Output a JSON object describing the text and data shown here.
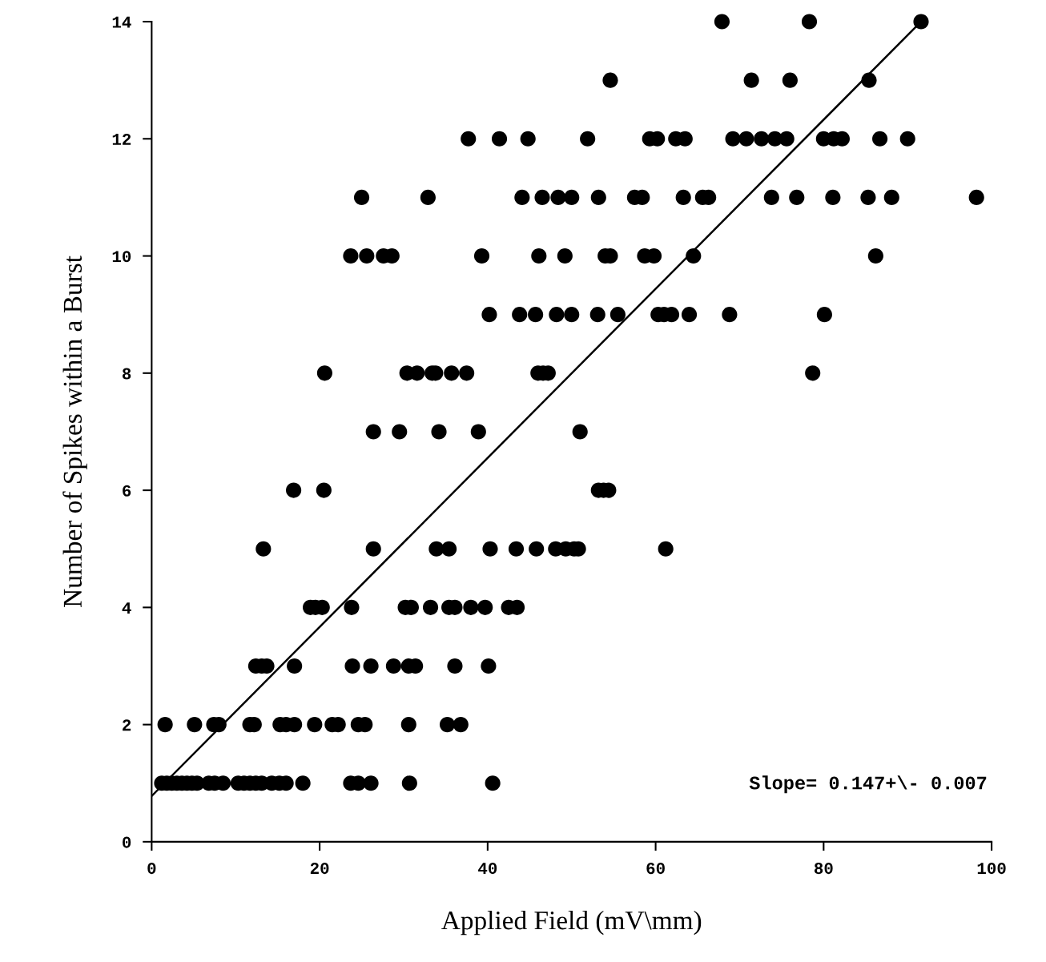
{
  "chart_data": {
    "type": "scatter",
    "xlabel": "Applied Field (mV\\mm)",
    "ylabel": "Number of Spikes within a Burst",
    "xlim": [
      0,
      100
    ],
    "xticks": [
      0,
      20,
      40,
      60,
      80,
      100
    ],
    "ylim": [
      0,
      14
    ],
    "yticks": [
      0,
      2,
      4,
      6,
      8,
      10,
      12,
      14
    ],
    "grid": false,
    "legend": false,
    "annotations": [
      "Slope= 0.147+\\- 0.007"
    ],
    "series": [
      {
        "color": "#000000",
        "marker": "circle",
        "x": [
          67.9,
          78.3,
          91.6,
          54.6,
          71.4,
          76.0,
          85.4,
          37.7,
          41.4,
          44.8,
          51.9,
          59.3,
          60.2,
          62.4,
          63.5,
          69.2,
          70.8,
          72.6,
          74.2,
          75.6,
          80.0,
          81.2,
          82.2,
          86.7,
          90.0,
          25.0,
          32.9,
          44.1,
          46.5,
          48.4,
          50.0,
          53.2,
          57.5,
          58.4,
          63.3,
          65.6,
          66.3,
          73.8,
          76.8,
          81.1,
          85.3,
          88.1,
          98.2,
          23.7,
          25.6,
          27.6,
          28.6,
          39.3,
          46.1,
          49.2,
          54.0,
          54.6,
          58.7,
          59.8,
          64.5,
          86.2,
          40.2,
          43.8,
          45.7,
          48.2,
          50.0,
          53.1,
          55.5,
          60.3,
          61.0,
          61.9,
          64.0,
          68.8,
          80.1,
          20.6,
          30.4,
          31.6,
          33.4,
          33.8,
          35.7,
          37.5,
          46.0,
          46.6,
          47.2,
          78.7,
          26.4,
          29.5,
          34.2,
          38.9,
          51.0,
          16.9,
          20.5,
          53.2,
          53.8,
          54.4,
          13.3,
          26.4,
          33.9,
          35.4,
          40.3,
          43.4,
          45.8,
          48.1,
          49.3,
          50.3,
          50.8,
          61.2,
          18.9,
          19.5,
          20.3,
          23.8,
          30.2,
          30.9,
          33.2,
          35.4,
          36.1,
          38.0,
          39.7,
          42.5,
          43.5,
          12.4,
          13.1,
          13.7,
          17.0,
          23.9,
          26.1,
          28.8,
          30.6,
          31.4,
          36.1,
          40.1,
          1.6,
          5.1,
          7.4,
          8.0,
          11.7,
          12.2,
          15.3,
          16.0,
          17.0,
          19.4,
          21.5,
          22.2,
          24.6,
          25.4,
          30.6,
          35.2,
          36.8,
          1.2,
          1.8,
          2.4,
          3.0,
          3.6,
          4.2,
          4.8,
          5.4,
          6.8,
          7.5,
          8.5,
          10.3,
          11.0,
          11.7,
          12.4,
          13.1,
          14.3,
          15.2,
          16.0,
          18.0,
          23.7,
          24.6,
          26.1,
          30.7,
          40.6
        ],
        "values": [
          14,
          14,
          14,
          13,
          13,
          13,
          13,
          12,
          12,
          12,
          12,
          12,
          12,
          12,
          12,
          12,
          12,
          12,
          12,
          12,
          12,
          12,
          12,
          12,
          12,
          11,
          11,
          11,
          11,
          11,
          11,
          11,
          11,
          11,
          11,
          11,
          11,
          11,
          11,
          11,
          11,
          11,
          11,
          10,
          10,
          10,
          10,
          10,
          10,
          10,
          10,
          10,
          10,
          10,
          10,
          10,
          9,
          9,
          9,
          9,
          9,
          9,
          9,
          9,
          9,
          9,
          9,
          9,
          9,
          8,
          8,
          8,
          8,
          8,
          8,
          8,
          8,
          8,
          8,
          8,
          7,
          7,
          7,
          7,
          7,
          6,
          6,
          6,
          6,
          6,
          5,
          5,
          5,
          5,
          5,
          5,
          5,
          5,
          5,
          5,
          5,
          5,
          4,
          4,
          4,
          4,
          4,
          4,
          4,
          4,
          4,
          4,
          4,
          4,
          4,
          3,
          3,
          3,
          3,
          3,
          3,
          3,
          3,
          3,
          3,
          3,
          2,
          2,
          2,
          2,
          2,
          2,
          2,
          2,
          2,
          2,
          2,
          2,
          2,
          2,
          2,
          2,
          2,
          1,
          1,
          1,
          1,
          1,
          1,
          1,
          1,
          1,
          1,
          1,
          1,
          1,
          1,
          1,
          1,
          1,
          1,
          1,
          1,
          1,
          1,
          1,
          1,
          1
        ]
      },
      {
        "type": "line",
        "color": "#000000",
        "line_style": "solid",
        "marker": "none",
        "x": [
          0,
          91.6
        ],
        "values": [
          0.78,
          14.0
        ]
      }
    ]
  }
}
